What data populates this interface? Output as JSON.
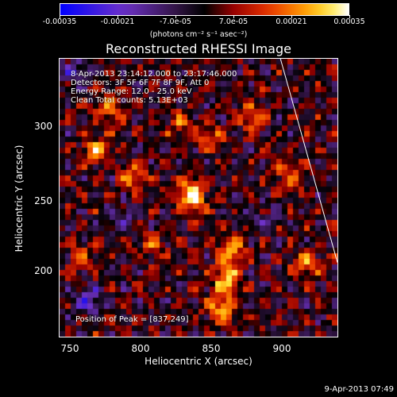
{
  "colorbar": {
    "tick_labels": [
      "-0.00035",
      "-0.00021",
      "-7.0e-05",
      "7.0e-05",
      "0.00021",
      "0.00035"
    ],
    "units_label": "(photons cm⁻² s⁻¹ asec⁻²)"
  },
  "title": "Reconstructed RHESSI Image",
  "info": {
    "time_range": "8-Apr-2013 23:14:12.000 to 23:17:46.000",
    "detectors": "Detectors: 3F 5F 6F 7F 8F 9F, Att 0",
    "energy_range": "Energy Range: 12.0 - 25.0 keV",
    "method": "Clean    Total counts: 5.13E+03",
    "peak_position": "Position of Peak = [837,249]"
  },
  "axes": {
    "xlabel": "Heliocentric X (arcsec)",
    "ylabel": "Heliocentric Y (arcsec)",
    "xticks": [
      "750",
      "800",
      "850",
      "900"
    ],
    "yticks": [
      "300",
      "250",
      "200"
    ]
  },
  "timestamp": "9-Apr-2013 07:49",
  "chart_data": {
    "type": "heatmap",
    "title": "Reconstructed RHESSI Image",
    "xlabel": "Heliocentric X (arcsec)",
    "ylabel": "Heliocentric Y (arcsec)",
    "xlim": [
      745,
      940
    ],
    "ylim": [
      150,
      345
    ],
    "color_range": [
      -0.00035,
      0.00035
    ],
    "colormap": "blue-purple-black-red-orange-yellow-white",
    "peak": {
      "x": 837,
      "y": 249
    },
    "sources": [
      {
        "x": 837,
        "y": 249,
        "value": 0.00035
      },
      {
        "x": 862,
        "y": 190,
        "value": 0.00028
      },
      {
        "x": 858,
        "y": 170,
        "value": 0.00024
      },
      {
        "x": 866,
        "y": 210,
        "value": 0.00022
      },
      {
        "x": 770,
        "y": 280,
        "value": 0.00024
      },
      {
        "x": 798,
        "y": 262,
        "value": 0.00018
      },
      {
        "x": 780,
        "y": 310,
        "value": 0.00017
      },
      {
        "x": 905,
        "y": 262,
        "value": 0.00017
      },
      {
        "x": 850,
        "y": 290,
        "value": 0.00015
      },
      {
        "x": 918,
        "y": 200,
        "value": 0.00019
      },
      {
        "x": 760,
        "y": 205,
        "value": 0.00014
      },
      {
        "x": 880,
        "y": 305,
        "value": 0.00016
      },
      {
        "x": 810,
        "y": 215,
        "value": 0.00013
      },
      {
        "x": 830,
        "y": 300,
        "value": 0.00014
      },
      {
        "x": 765,
        "y": 175,
        "value": -0.00018
      },
      {
        "x": 790,
        "y": 235,
        "value": -0.00012
      },
      {
        "x": 888,
        "y": 232,
        "value": -0.0001
      },
      {
        "x": 755,
        "y": 335,
        "value": -0.00015
      }
    ],
    "limb_line": {
      "from": {
        "x": 900,
        "y": 345
      },
      "to": {
        "x": 940,
        "y": 202
      }
    }
  }
}
